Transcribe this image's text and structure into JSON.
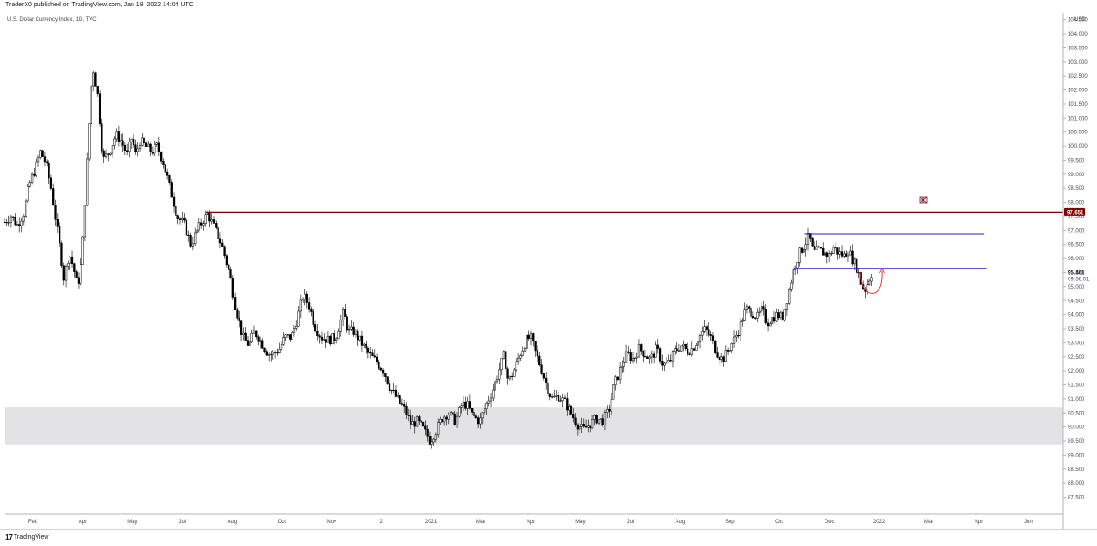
{
  "header": {
    "publish_info": "TraderX0 published on TradingView.com, Jan 18, 2022 14:04 UTC"
  },
  "footer": {
    "logo_mark": "17",
    "logo_text": "TradingView"
  },
  "chart_data": {
    "type": "candlestick",
    "symbol_line": "U.S. Dollar Currency Index, 1D, TVC",
    "currency": "USD",
    "y_axis": {
      "ylim": [
        86.9,
        104.75
      ],
      "ticks": [
        "87.500",
        "88.000",
        "88.500",
        "89.000",
        "89.500",
        "90.000",
        "90.500",
        "91.000",
        "91.500",
        "92.000",
        "92.500",
        "93.000",
        "93.500",
        "94.000",
        "94.500",
        "95.000",
        "95.500",
        "96.000",
        "96.500",
        "97.000",
        "97.500",
        "98.000",
        "98.500",
        "99.000",
        "99.500",
        "100.000",
        "100.500",
        "101.000",
        "101.500",
        "102.000",
        "102.500",
        "103.000",
        "103.500",
        "104.000",
        "104.500"
      ]
    },
    "x_axis": {
      "labels": [
        "Feb",
        "Apr",
        "May",
        "Jul",
        "Aug",
        "Oct",
        "Nov",
        "2",
        "2021",
        "Mar",
        "Apr",
        "May",
        "Jul",
        "Aug",
        "Sep",
        "Oct",
        "Dec",
        "2022",
        "Mar",
        "Apr",
        "Jun"
      ]
    },
    "price_labels": {
      "resistance": "97.651",
      "current": "95.461",
      "countdown": "09:56:01"
    },
    "levels": {
      "resistance": 97.651,
      "range_top": 96.88,
      "range_bottom": 95.64,
      "demand_zone": [
        89.38,
        90.7
      ]
    },
    "colors": {
      "resistance": "#800000",
      "range_lines": "#2b1fd6",
      "zone": "#e3e3e5",
      "candle": "#000000",
      "arrow": "#e53935"
    },
    "close_path": [
      [
        0,
        97.3
      ],
      [
        0.6,
        97.5
      ],
      [
        1.2,
        97.2
      ],
      [
        1.8,
        97.6
      ],
      [
        2.3,
        98.6
      ],
      [
        2.9,
        99.2
      ],
      [
        3.4,
        99.8
      ],
      [
        3.9,
        99.4
      ],
      [
        4.4,
        98.5
      ],
      [
        4.9,
        97.2
      ],
      [
        5.3,
        96.2
      ],
      [
        5.6,
        95.3
      ],
      [
        6.1,
        96.2
      ],
      [
        6.5,
        95.7
      ],
      [
        6.9,
        95.0
      ],
      [
        7.3,
        96.0
      ],
      [
        7.8,
        99.5
      ],
      [
        8.3,
        102.9
      ],
      [
        8.8,
        101.8
      ],
      [
        9.3,
        99.5
      ],
      [
        9.9,
        99.8
      ],
      [
        10.5,
        100.4
      ],
      [
        11.0,
        100.2
      ],
      [
        11.6,
        99.7
      ],
      [
        12.0,
        100.3
      ],
      [
        12.4,
        99.7
      ],
      [
        12.8,
        100.2
      ],
      [
        13.3,
        100.0
      ],
      [
        13.9,
        99.8
      ],
      [
        14.4,
        100.0
      ],
      [
        15.0,
        99.4
      ],
      [
        15.5,
        98.7
      ],
      [
        16.3,
        97.5
      ],
      [
        17.0,
        97.2
      ],
      [
        17.6,
        96.5
      ],
      [
        18.2,
        97.0
      ],
      [
        18.8,
        97.4
      ],
      [
        19.2,
        97.6
      ],
      [
        19.7,
        97.2
      ],
      [
        20.5,
        96.5
      ],
      [
        21.3,
        95.4
      ],
      [
        21.8,
        94.3
      ],
      [
        22.5,
        93.2
      ],
      [
        23.1,
        92.9
      ],
      [
        23.6,
        93.4
      ],
      [
        24.3,
        93.0
      ],
      [
        24.9,
        92.6
      ],
      [
        25.4,
        92.6
      ],
      [
        26.0,
        92.8
      ],
      [
        26.5,
        93.2
      ],
      [
        27.1,
        93.2
      ],
      [
        27.6,
        93.8
      ],
      [
        28.2,
        94.7
      ],
      [
        28.8,
        94.3
      ],
      [
        29.3,
        93.6
      ],
      [
        29.9,
        93.2
      ],
      [
        30.6,
        93.1
      ],
      [
        31.3,
        93.2
      ],
      [
        32.0,
        94.1
      ],
      [
        32.5,
        93.4
      ],
      [
        33.0,
        93.4
      ],
      [
        33.7,
        93.0
      ],
      [
        34.4,
        92.6
      ],
      [
        35.2,
        92.3
      ],
      [
        35.8,
        92.0
      ],
      [
        36.4,
        91.4
      ],
      [
        37.1,
        91.0
      ],
      [
        37.8,
        90.6
      ],
      [
        38.4,
        90.1
      ],
      [
        39.0,
        90.2
      ],
      [
        39.6,
        89.9
      ],
      [
        40.2,
        89.5
      ],
      [
        40.8,
        89.9
      ],
      [
        41.3,
        90.3
      ],
      [
        41.9,
        90.5
      ],
      [
        42.6,
        90.2
      ],
      [
        43.2,
        90.8
      ],
      [
        43.7,
        90.8
      ],
      [
        44.2,
        90.4
      ],
      [
        44.9,
        90.2
      ],
      [
        45.5,
        90.8
      ],
      [
        46.1,
        91.3
      ],
      [
        46.7,
        92.0
      ],
      [
        47.2,
        92.6
      ],
      [
        47.6,
        91.6
      ],
      [
        48.1,
        92.0
      ],
      [
        48.7,
        92.6
      ],
      [
        49.3,
        93.1
      ],
      [
        49.7,
        93.2
      ],
      [
        50.1,
        92.7
      ],
      [
        50.6,
        92.2
      ],
      [
        51.1,
        91.6
      ],
      [
        51.7,
        91.0
      ],
      [
        52.3,
        91.1
      ],
      [
        52.9,
        90.9
      ],
      [
        53.5,
        90.5
      ],
      [
        54.1,
        90.1
      ],
      [
        54.7,
        89.9
      ],
      [
        55.3,
        90.1
      ],
      [
        55.9,
        90.3
      ],
      [
        56.5,
        90.2
      ],
      [
        57.1,
        90.6
      ],
      [
        57.6,
        91.5
      ],
      [
        58.2,
        92.1
      ],
      [
        58.8,
        92.6
      ],
      [
        59.4,
        92.4
      ],
      [
        59.9,
        92.8
      ],
      [
        60.5,
        92.6
      ],
      [
        61.0,
        92.4
      ],
      [
        61.6,
        92.8
      ],
      [
        62.2,
        92.2
      ],
      [
        62.8,
        92.3
      ],
      [
        63.3,
        92.7
      ],
      [
        63.9,
        92.9
      ],
      [
        64.5,
        92.7
      ],
      [
        65.0,
        92.8
      ],
      [
        65.6,
        93.2
      ],
      [
        66.2,
        93.5
      ],
      [
        66.7,
        93.2
      ],
      [
        67.2,
        92.7
      ],
      [
        67.8,
        92.4
      ],
      [
        68.3,
        92.7
      ],
      [
        68.9,
        93.1
      ],
      [
        69.4,
        93.5
      ],
      [
        70.0,
        94.2
      ],
      [
        70.6,
        94.1
      ],
      [
        71.1,
        93.9
      ],
      [
        71.6,
        94.2
      ],
      [
        72.0,
        93.7
      ],
      [
        72.6,
        93.9
      ],
      [
        73.0,
        94.0
      ],
      [
        73.5,
        93.9
      ],
      [
        74.0,
        94.7
      ],
      [
        74.6,
        95.7
      ],
      [
        75.1,
        96.2
      ],
      [
        75.6,
        96.5
      ],
      [
        76.0,
        96.8
      ],
      [
        76.4,
        96.2
      ],
      [
        76.9,
        96.3
      ],
      [
        77.4,
        96.2
      ],
      [
        77.9,
        96.1
      ],
      [
        78.3,
        96.4
      ],
      [
        78.8,
        96.2
      ],
      [
        79.3,
        96.1
      ],
      [
        79.7,
        96.3
      ],
      [
        80.2,
        95.9
      ],
      [
        80.6,
        95.6
      ],
      [
        81.0,
        95.0
      ],
      [
        81.3,
        94.9
      ],
      [
        81.6,
        95.2
      ],
      [
        81.9,
        95.46
      ]
    ]
  }
}
